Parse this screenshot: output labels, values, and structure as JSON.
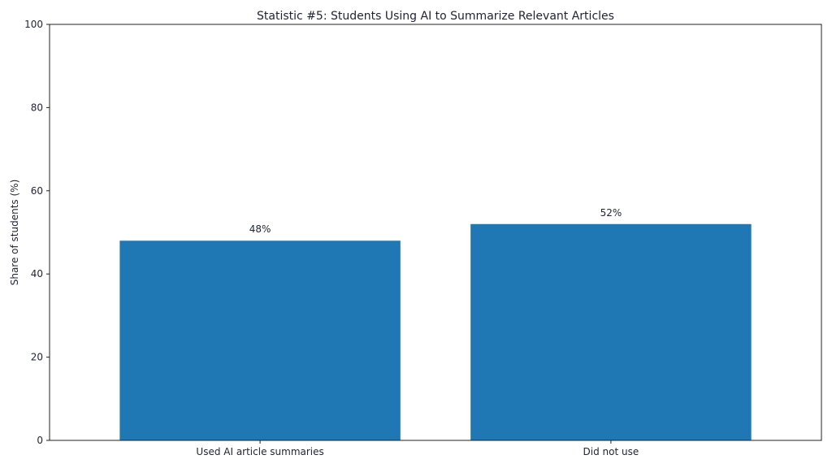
{
  "chart_data": {
    "type": "bar",
    "title": "Statistic #5: Students Using AI to Summarize Relevant Articles",
    "xlabel": "",
    "ylabel": "Share of students (%)",
    "ylim": [
      0,
      100
    ],
    "yticks": [
      0,
      20,
      40,
      60,
      80,
      100
    ],
    "grid": false,
    "categories": [
      "Used AI article summaries",
      "Did not use"
    ],
    "values": [
      48,
      52
    ],
    "data_labels": [
      "48%",
      "52%"
    ],
    "bar_color": "#1f77b4"
  }
}
